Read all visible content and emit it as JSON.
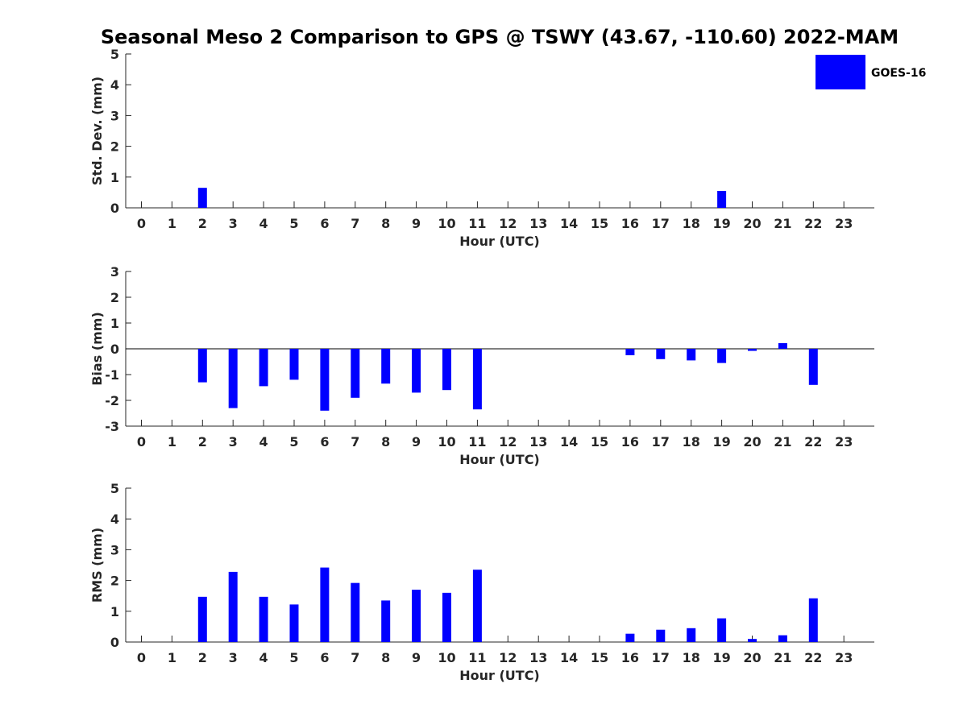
{
  "chart_data": {
    "type": "bar",
    "title": "Seasonal Meso 2 Comparison to GPS @ TSWY (43.67, -110.60) 2022-MAM",
    "legend": {
      "label": "GOES-16",
      "placement": "top-right"
    },
    "colors": {
      "bar": "#0000ff"
    },
    "categories": [
      0,
      1,
      2,
      3,
      4,
      5,
      6,
      7,
      8,
      9,
      10,
      11,
      12,
      13,
      14,
      15,
      16,
      17,
      18,
      19,
      20,
      21,
      22,
      23
    ],
    "panels": [
      {
        "id": "std",
        "ylabel": "Std. Dev. (mm)",
        "xlabel": "Hour (UTC)",
        "ylim": [
          0,
          5
        ],
        "yticks": [
          0,
          1,
          2,
          3,
          4,
          5
        ],
        "values": [
          null,
          null,
          0.65,
          null,
          null,
          null,
          null,
          null,
          null,
          null,
          null,
          null,
          null,
          null,
          null,
          null,
          null,
          null,
          null,
          0.55,
          null,
          null,
          null,
          null
        ]
      },
      {
        "id": "bias",
        "ylabel": "Bias (mm)",
        "xlabel": "Hour (UTC)",
        "ylim": [
          -3,
          3
        ],
        "yticks": [
          -3,
          -2,
          -1,
          0,
          1,
          2,
          3
        ],
        "zero_line": true,
        "values": [
          null,
          null,
          -1.3,
          -2.3,
          -1.45,
          -1.2,
          -2.4,
          -1.9,
          -1.35,
          -1.7,
          -1.6,
          -2.35,
          null,
          null,
          null,
          null,
          -0.25,
          -0.4,
          -0.45,
          -0.55,
          -0.08,
          0.22,
          -1.4,
          null
        ]
      },
      {
        "id": "rms",
        "ylabel": "RMS (mm)",
        "xlabel": "Hour (UTC)",
        "ylim": [
          0,
          5
        ],
        "yticks": [
          0,
          1,
          2,
          3,
          4,
          5
        ],
        "values": [
          null,
          null,
          1.47,
          2.28,
          1.47,
          1.22,
          2.42,
          1.92,
          1.35,
          1.7,
          1.6,
          2.35,
          null,
          null,
          null,
          null,
          0.27,
          0.4,
          0.45,
          0.77,
          0.1,
          0.22,
          1.42,
          null
        ]
      }
    ]
  }
}
